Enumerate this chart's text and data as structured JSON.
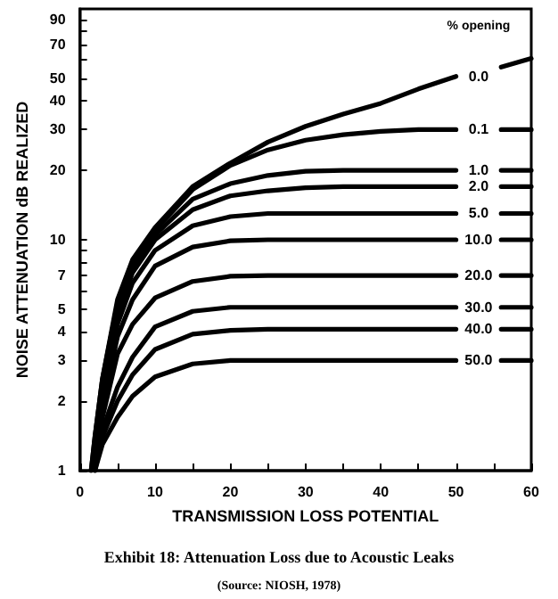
{
  "chart_data": {
    "type": "line",
    "title": "Exhibit 18: Attenuation Loss due to Acoustic Leaks",
    "annotations": [
      "(Source: NIOSH, 1978)"
    ],
    "xlabel": "TRANSMISSION LOSS POTENTIAL",
    "ylabel": "NOISE ATTENUATION dB REALIZED",
    "legend_title": "% opening",
    "log": true,
    "grid": false,
    "legend": false,
    "marker": "none",
    "line_style": "solid",
    "xlim": [
      0,
      60
    ],
    "xticks": [
      0,
      {
        "value": 5,
        "label": null
      },
      10,
      {
        "value": 15,
        "label": null
      },
      20,
      {
        "value": 25,
        "label": null
      },
      30,
      {
        "value": 35,
        "label": null
      },
      40,
      {
        "value": 45,
        "label": null
      },
      50,
      {
        "value": 55,
        "label": null
      },
      60
    ],
    "ylim": [
      1,
      100
    ],
    "yticks": [
      1,
      2,
      3,
      4,
      5,
      {
        "value": 6,
        "label": null
      },
      7,
      {
        "value": 8,
        "label": null
      },
      {
        "value": 9,
        "label": null
      },
      10,
      20,
      30,
      40,
      50,
      {
        "value": 60,
        "label": null
      },
      70,
      {
        "value": 80,
        "label": null
      },
      90
    ],
    "x": [
      1.5,
      2,
      3,
      5,
      7,
      10,
      15,
      20,
      25,
      30,
      35,
      40,
      45,
      50,
      53,
      56,
      60
    ],
    "series": [
      {
        "name": "0.0",
        "color": "#000000",
        "values": [
          1,
          1.4,
          2.5,
          5.5,
          8.2,
          11.3,
          17,
          21.5,
          26.5,
          31,
          35,
          39,
          45,
          51,
          null,
          56,
          61
        ]
      },
      {
        "name": "0.1",
        "color": "#000000",
        "values": [
          1,
          1.4,
          2.5,
          5.3,
          8,
          11,
          16.5,
          21,
          24.5,
          27,
          28.5,
          29.5,
          30,
          30,
          null,
          30,
          30
        ]
      },
      {
        "name": "1.0",
        "color": "#000000",
        "values": [
          null,
          1.3,
          2.3,
          5,
          7.6,
          10.5,
          15,
          17.5,
          19,
          19.8,
          20,
          20,
          20,
          20,
          null,
          20,
          20
        ]
      },
      {
        "name": "2.0",
        "color": "#000000",
        "values": [
          null,
          1.25,
          2.2,
          4.7,
          7.2,
          10,
          13.5,
          15.5,
          16.3,
          16.8,
          17,
          17,
          17,
          17,
          null,
          17,
          17
        ]
      },
      {
        "name": "5.0",
        "color": "#000000",
        "values": [
          null,
          1.2,
          2.1,
          4.3,
          6.5,
          9,
          11.5,
          12.6,
          13,
          13,
          13,
          13,
          13,
          13,
          null,
          13,
          13
        ]
      },
      {
        "name": "10.0",
        "color": "#000000",
        "values": [
          null,
          1.15,
          1.9,
          3.8,
          5.5,
          7.7,
          9.3,
          9.9,
          10,
          10,
          10,
          10,
          10,
          10,
          null,
          10,
          10
        ]
      },
      {
        "name": "20.0",
        "color": "#000000",
        "values": [
          null,
          1.1,
          1.7,
          3.2,
          4.3,
          5.6,
          6.6,
          6.95,
          7,
          7,
          7,
          7,
          7,
          7,
          null,
          7,
          7
        ]
      },
      {
        "name": "30.0",
        "color": "#000000",
        "values": [
          null,
          1.05,
          1.5,
          2.3,
          3.1,
          4.2,
          4.9,
          5.1,
          5.1,
          5.1,
          5.1,
          5.1,
          5.1,
          5.1,
          null,
          5.1,
          5.1
        ]
      },
      {
        "name": "40.0",
        "color": "#000000",
        "values": [
          null,
          1,
          1.4,
          2,
          2.6,
          3.35,
          3.9,
          4.05,
          4.1,
          4.1,
          4.1,
          4.1,
          4.1,
          4.1,
          null,
          4.1,
          4.1
        ]
      },
      {
        "name": "50.0",
        "color": "#000000",
        "values": [
          null,
          1,
          1.3,
          1.7,
          2.1,
          2.55,
          2.9,
          3,
          3,
          3,
          3,
          3,
          3,
          3,
          null,
          3,
          3
        ]
      }
    ]
  }
}
